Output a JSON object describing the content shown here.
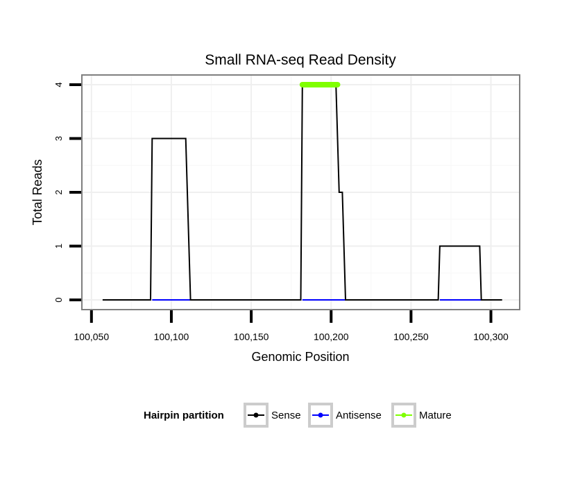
{
  "chart_data": {
    "type": "line",
    "title": "Small RNA-seq Read Density",
    "xlabel": "Genomic Position",
    "ylabel": "Total Reads",
    "xlim": [
      100044,
      100318
    ],
    "ylim": [
      -0.18,
      4.18
    ],
    "x_ticks": [
      100050,
      100100,
      100150,
      100200,
      100250,
      100300
    ],
    "x_tick_labels": [
      "100,050",
      "100,100",
      "100,150",
      "100,200",
      "100,250",
      "100,300"
    ],
    "y_ticks": [
      0,
      1,
      2,
      3,
      4
    ],
    "y_tick_labels": [
      "0",
      "1",
      "2",
      "3",
      "4"
    ],
    "grid": true,
    "legend_position": "bottom",
    "legend_title": "Hairpin partition",
    "series": [
      {
        "name": "Sense",
        "color": "#000000",
        "points": [
          [
            100057,
            0
          ],
          [
            100087,
            0
          ],
          [
            100088,
            3
          ],
          [
            100109,
            3
          ],
          [
            100110,
            2
          ],
          [
            100112,
            0
          ],
          [
            100181,
            0
          ],
          [
            100182,
            4
          ],
          [
            100203,
            4
          ],
          [
            100205,
            2
          ],
          [
            100207,
            2
          ],
          [
            100209,
            0
          ],
          [
            100267,
            0
          ],
          [
            100268,
            1
          ],
          [
            100293,
            1
          ],
          [
            100294,
            0
          ],
          [
            100307,
            0
          ]
        ]
      },
      {
        "name": "Antisense",
        "color": "#0000ff",
        "segments": [
          [
            100088,
            100112
          ],
          [
            100182,
            100209
          ],
          [
            100268,
            100294
          ]
        ],
        "value": 0
      },
      {
        "name": "Mature",
        "color": "#7fff00",
        "segments": [
          [
            100182,
            100204
          ]
        ],
        "value": 4
      }
    ]
  }
}
